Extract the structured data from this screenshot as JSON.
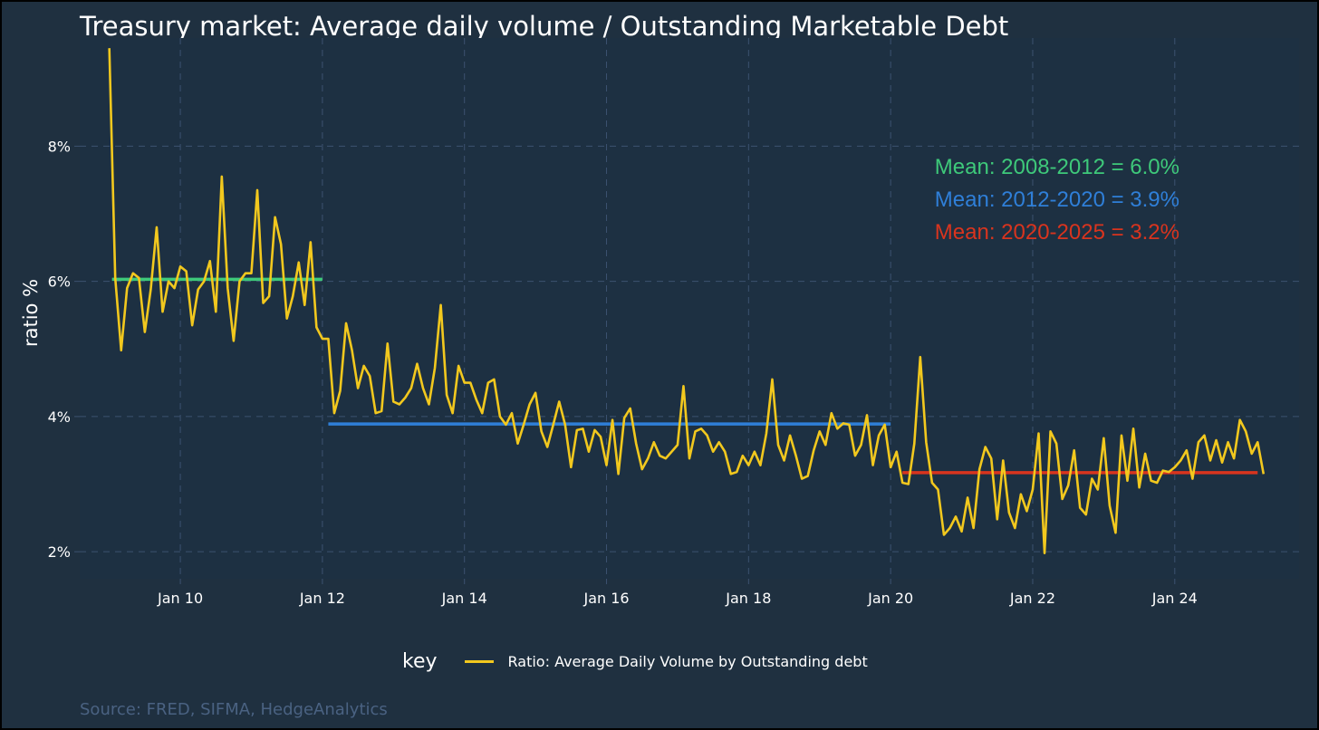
{
  "chart_data": {
    "type": "line",
    "title": "Treasury market: Average daily volume / Outstanding Marketable Debt",
    "ylabel": "ratio %",
    "xlabel": "",
    "ylim": [
      1.6,
      9.6
    ],
    "xlim": [
      "2008-08-01",
      "2025-10-01"
    ],
    "y_ticks": [
      {
        "value": 2,
        "label": "2%"
      },
      {
        "value": 4,
        "label": "4%"
      },
      {
        "value": 6,
        "label": "6%"
      },
      {
        "value": 8,
        "label": "8%"
      }
    ],
    "x_ticks": [
      {
        "value": "2010-01-01",
        "label": "Jan 10"
      },
      {
        "value": "2012-01-01",
        "label": "Jan 12"
      },
      {
        "value": "2014-01-01",
        "label": "Jan 14"
      },
      {
        "value": "2016-01-01",
        "label": "Jan 16"
      },
      {
        "value": "2018-01-01",
        "label": "Jan 18"
      },
      {
        "value": "2020-01-01",
        "label": "Jan 20"
      },
      {
        "value": "2022-01-01",
        "label": "Jan 22"
      },
      {
        "value": "2024-01-01",
        "label": "Jan 24"
      }
    ],
    "grid": true,
    "legend": {
      "position": "bottom",
      "title": "key"
    },
    "series": [
      {
        "name": "Ratio: Average Daily Volume by Outstanding debt",
        "color": "#f2c81e",
        "start": "2009-01",
        "frequency": "monthly",
        "values": [
          9.45,
          6.05,
          4.98,
          5.9,
          6.12,
          6.05,
          5.25,
          5.88,
          6.8,
          5.55,
          6.0,
          5.9,
          6.22,
          6.15,
          5.35,
          5.88,
          6.0,
          6.3,
          5.55,
          7.55,
          5.9,
          5.12,
          6.0,
          6.12,
          6.12,
          7.35,
          5.68,
          5.78,
          6.95,
          6.55,
          5.45,
          5.78,
          6.28,
          5.65,
          6.58,
          5.32,
          5.15,
          5.15,
          4.05,
          4.38,
          5.38,
          4.98,
          4.42,
          4.75,
          4.6,
          4.05,
          4.08,
          5.08,
          4.22,
          4.18,
          4.28,
          4.42,
          4.78,
          4.42,
          4.18,
          4.72,
          5.65,
          4.32,
          4.05,
          4.75,
          4.5,
          4.5,
          4.25,
          4.05,
          4.5,
          4.55,
          4.0,
          3.88,
          4.05,
          3.6,
          3.88,
          4.18,
          4.35,
          3.78,
          3.55,
          3.88,
          4.22,
          3.88,
          3.25,
          3.8,
          3.82,
          3.48,
          3.8,
          3.7,
          3.28,
          3.95,
          3.15,
          3.98,
          4.12,
          3.6,
          3.22,
          3.38,
          3.62,
          3.42,
          3.38,
          3.48,
          3.58,
          4.45,
          3.38,
          3.78,
          3.82,
          3.72,
          3.48,
          3.62,
          3.48,
          3.15,
          3.18,
          3.42,
          3.28,
          3.48,
          3.28,
          3.75,
          4.55,
          3.58,
          3.35,
          3.72,
          3.42,
          3.08,
          3.12,
          3.5,
          3.78,
          3.58,
          4.05,
          3.82,
          3.9,
          3.88,
          3.42,
          3.58,
          4.02,
          3.28,
          3.72,
          3.88,
          3.25,
          3.48,
          3.02,
          3.0,
          3.6,
          4.88,
          3.62,
          3.02,
          2.92,
          2.25,
          2.35,
          2.52,
          2.3,
          2.8,
          2.35,
          3.22,
          3.55,
          3.38,
          2.48,
          3.35,
          2.58,
          2.35,
          2.85,
          2.6,
          2.92,
          3.75,
          1.98,
          3.78,
          3.6,
          2.78,
          2.98,
          3.5,
          2.65,
          2.55,
          3.08,
          2.92,
          3.68,
          2.68,
          2.28,
          3.72,
          3.05,
          3.82,
          2.95,
          3.45,
          3.05,
          3.02,
          3.2,
          3.18,
          3.25,
          3.35,
          3.5,
          3.08,
          3.62,
          3.72,
          3.35,
          3.65,
          3.32,
          3.62,
          3.38,
          3.95,
          3.78,
          3.45,
          3.62,
          3.15
        ]
      }
    ],
    "mean_lines": [
      {
        "label": "Mean: 2008-2012 = 6.0%",
        "start": "2009-01-15",
        "end": "2012-01-01",
        "value": 6.03,
        "color": "#3ec97a"
      },
      {
        "label": "Mean: 2012-2020 = 3.9%",
        "start": "2012-02-01",
        "end": "2020-01-01",
        "value": 3.89,
        "color": "#2f7fd8"
      },
      {
        "label": "Mean: 2020-2025 = 3.2%",
        "start": "2020-03-01",
        "end": "2025-03-01",
        "value": 3.17,
        "color": "#d9341e"
      }
    ]
  },
  "legend_title": "key",
  "legend_label": "Ratio: Average Daily Volume by Outstanding debt",
  "source": "Source: FRED, SIFMA, HedgeAnalytics",
  "colors": {
    "background": "#1f3040",
    "panel": "#1d3042",
    "grid": "#3c5270",
    "series": "#f2c81e"
  }
}
